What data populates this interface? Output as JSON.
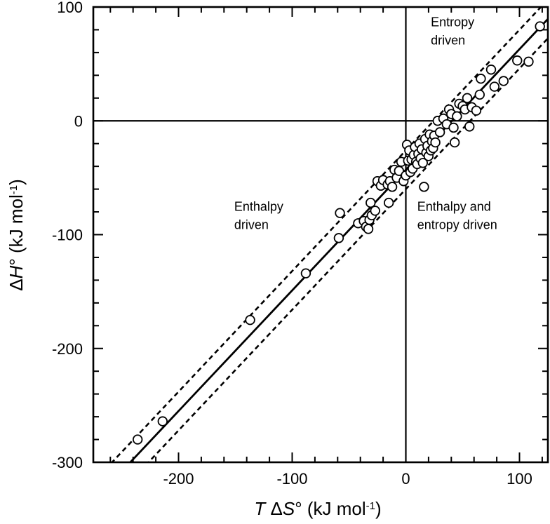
{
  "chart_data": {
    "type": "scatter",
    "xlabel_parts": {
      "italic_prefix": "T",
      "delta": " Δ",
      "italic_var": "S",
      "suffix": "° (kJ mol",
      "sup": "-1",
      "close": ")"
    },
    "ylabel_parts": {
      "delta": "Δ",
      "italic_var": "H",
      "suffix": "° (kJ mol",
      "sup": "-1",
      "close": ")"
    },
    "xlim": [
      -275,
      125
    ],
    "ylim": [
      -300,
      100
    ],
    "x_ticks": [
      -200,
      -100,
      0,
      100
    ],
    "y_ticks": [
      -300,
      -200,
      -100,
      0,
      100
    ],
    "x_tick_labels": [
      "-200",
      "-100",
      "0",
      "100"
    ],
    "y_tick_labels": [
      "-300",
      "-200",
      "-100",
      "0",
      "100"
    ],
    "grid": false,
    "reference_lines": {
      "x": 0,
      "y": 0
    },
    "fit_line": {
      "slope": 1.06,
      "intercept": -43
    },
    "band_lines": [
      {
        "slope": 1.06,
        "intercept": -26
      },
      {
        "slope": 1.06,
        "intercept": -60
      }
    ],
    "annotations": [
      {
        "lines": [
          "Entropy",
          "driven"
        ],
        "x": 22,
        "y": 83
      },
      {
        "lines": [
          "Enthalpy",
          "driven"
        ],
        "x": -151,
        "y": -79
      },
      {
        "lines": [
          "Enthalpy and",
          "entropy driven"
        ],
        "x": 10,
        "y": -79
      }
    ],
    "points": [
      [
        -236,
        -280
      ],
      [
        -214,
        -264
      ],
      [
        -137,
        -175
      ],
      [
        -88,
        -134
      ],
      [
        -59,
        -103
      ],
      [
        -58,
        -81
      ],
      [
        -42,
        -90
      ],
      [
        -37,
        -88
      ],
      [
        -35,
        -93
      ],
      [
        -33,
        -95
      ],
      [
        -32,
        -87
      ],
      [
        -31,
        -72
      ],
      [
        -30,
        -83
      ],
      [
        -27,
        -79
      ],
      [
        -25,
        -53
      ],
      [
        -22,
        -57
      ],
      [
        -20,
        -52
      ],
      [
        -16,
        -56
      ],
      [
        -15,
        -72
      ],
      [
        -14,
        -53
      ],
      [
        -12,
        -58
      ],
      [
        -10,
        -43
      ],
      [
        -8,
        -50
      ],
      [
        -6,
        -44
      ],
      [
        -4,
        -36
      ],
      [
        -2,
        -53
      ],
      [
        0,
        -48
      ],
      [
        1,
        -21
      ],
      [
        2,
        -35
      ],
      [
        3,
        -26
      ],
      [
        4,
        -45
      ],
      [
        5,
        -34
      ],
      [
        6,
        -42
      ],
      [
        7,
        -30
      ],
      [
        8,
        -23
      ],
      [
        9,
        -36
      ],
      [
        10,
        -38
      ],
      [
        11,
        -29
      ],
      [
        12,
        -20
      ],
      [
        13,
        -33
      ],
      [
        14,
        -25
      ],
      [
        15,
        -37
      ],
      [
        16,
        -58
      ],
      [
        17,
        -16
      ],
      [
        18,
        -28
      ],
      [
        19,
        -22
      ],
      [
        20,
        -31
      ],
      [
        21,
        -12
      ],
      [
        22,
        -26
      ],
      [
        23,
        -18
      ],
      [
        24,
        -24
      ],
      [
        25,
        -13
      ],
      [
        26,
        -19
      ],
      [
        28,
        0
      ],
      [
        30,
        -10
      ],
      [
        33,
        2
      ],
      [
        36,
        -3
      ],
      [
        38,
        10
      ],
      [
        40,
        6
      ],
      [
        42,
        -6
      ],
      [
        43,
        -19
      ],
      [
        45,
        4
      ],
      [
        47,
        15
      ],
      [
        50,
        13
      ],
      [
        52,
        10
      ],
      [
        54,
        20
      ],
      [
        56,
        -5
      ],
      [
        58,
        12
      ],
      [
        62,
        9
      ],
      [
        65,
        23
      ],
      [
        66,
        37
      ],
      [
        75,
        45
      ],
      [
        78,
        30
      ],
      [
        86,
        35
      ],
      [
        98,
        53
      ],
      [
        108,
        52
      ],
      [
        118,
        83
      ]
    ]
  }
}
